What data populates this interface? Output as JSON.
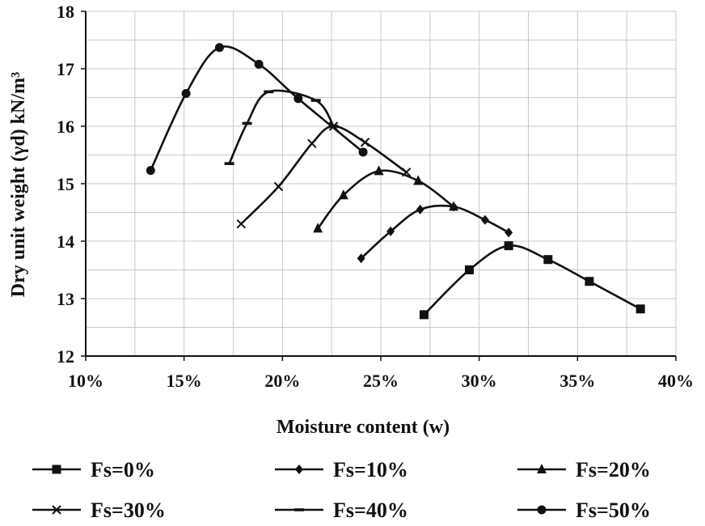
{
  "chart_data": {
    "type": "line",
    "title": "",
    "xlabel": "Moisture content (w)",
    "ylabel": "Dry unit weight (γd) kN/m³",
    "xlim": [
      0.1,
      0.4
    ],
    "ylim": [
      12,
      18
    ],
    "x_ticks": [
      "10%",
      "15%",
      "20%",
      "25%",
      "30%",
      "35%",
      "40%"
    ],
    "y_ticks": [
      "12",
      "13",
      "14",
      "15",
      "16",
      "17",
      "18"
    ],
    "grid": true,
    "legend_position": "bottom",
    "series": [
      {
        "name": "Fs=0%",
        "marker": "square",
        "x": [
          0.272,
          0.295,
          0.315,
          0.335,
          0.356,
          0.382
        ],
        "y": [
          12.72,
          13.5,
          13.92,
          13.68,
          13.3,
          12.82
        ]
      },
      {
        "name": "Fs=10%",
        "marker": "diamond",
        "x": [
          0.24,
          0.255,
          0.27,
          0.287,
          0.303,
          0.315
        ],
        "y": [
          13.7,
          14.17,
          14.55,
          14.6,
          14.37,
          14.15
        ]
      },
      {
        "name": "Fs=20%",
        "marker": "triangle",
        "x": [
          0.218,
          0.231,
          0.249,
          0.269,
          0.287
        ],
        "y": [
          14.22,
          14.8,
          15.22,
          15.05,
          14.6
        ]
      },
      {
        "name": "Fs=30%",
        "marker": "x",
        "x": [
          0.179,
          0.198,
          0.215,
          0.226,
          0.242,
          0.263
        ],
        "y": [
          14.3,
          14.95,
          15.7,
          16.0,
          15.72,
          15.2
        ]
      },
      {
        "name": "Fs=40%",
        "marker": "dash",
        "x": [
          0.173,
          0.182,
          0.193,
          0.217,
          0.226
        ],
        "y": [
          15.35,
          16.05,
          16.6,
          16.45,
          16.0
        ]
      },
      {
        "name": "Fs=50%",
        "marker": "circle",
        "x": [
          0.133,
          0.151,
          0.168,
          0.188,
          0.208,
          0.241
        ],
        "y": [
          15.23,
          16.57,
          17.37,
          17.08,
          16.48,
          15.55
        ]
      }
    ]
  }
}
